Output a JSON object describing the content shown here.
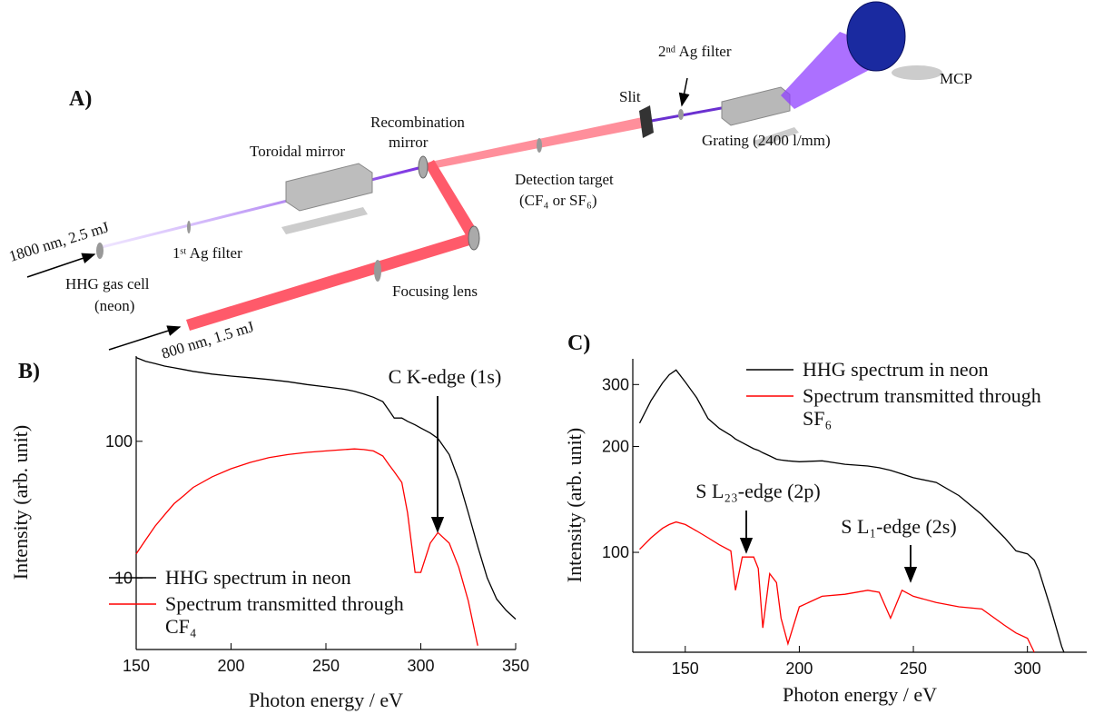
{
  "diagram": {
    "panel_label": "A)",
    "labels": {
      "toroidal_mirror": "Toroidal mirror",
      "recombination_mirror": [
        "Recombination",
        "mirror"
      ],
      "detection_target": [
        "Detection target",
        "(CF₄ or SF₆)"
      ],
      "slit": "Slit",
      "second_filter": "2ⁿᵈ Ag filter",
      "mcp": "MCP",
      "grating": "Grating (2400 l/mm)",
      "ir_beam": "1800 nm, 2.5 mJ",
      "first_filter": "1ˢᵗ Ag filter",
      "gas_cell": [
        "HHG gas cell",
        "(neon)"
      ],
      "focusing_lens": "Focusing lens",
      "nir_beam": "800 nm, 1.5 mJ"
    }
  },
  "chart_data": [
    {
      "type": "line",
      "panel_label": "B)",
      "xlabel": "Photon energy / eV",
      "ylabel": "Intensity (arb. unit)",
      "yscale": "log",
      "xlim": [
        150,
        350
      ],
      "ylim": [
        3,
        420
      ],
      "xticks": [
        150,
        200,
        250,
        300,
        350
      ],
      "yticks": [
        10,
        100
      ],
      "legend": "lower left",
      "annotations": [
        "C K-edge (1s)"
      ],
      "x": [
        150,
        155,
        160,
        165,
        170,
        175,
        180,
        190,
        200,
        210,
        220,
        230,
        240,
        250,
        260,
        265,
        270,
        275,
        280,
        283,
        286,
        290,
        293,
        297,
        300,
        305,
        309,
        315,
        320,
        325,
        330,
        335,
        340,
        345,
        350
      ],
      "series": [
        {
          "name": "HHG spectrum in neon",
          "color": "#000000",
          "values": [
            410,
            385,
            370,
            355,
            345,
            335,
            325,
            310,
            300,
            292,
            283,
            273,
            260,
            250,
            240,
            232,
            222,
            210,
            195,
            170,
            148,
            148,
            140,
            132,
            125,
            115,
            105,
            80,
            52,
            30,
            17,
            10,
            7,
            5.8,
            5
          ]
        },
        {
          "name": "Spectrum transmitted through CF₄",
          "color": "#ff0000",
          "values": [
            15,
            19,
            24,
            29,
            35,
            40,
            46,
            55,
            63,
            70,
            76,
            80,
            83,
            85,
            87,
            88,
            87,
            85,
            78,
            68,
            60,
            50,
            30,
            11,
            11,
            18,
            21.5,
            18,
            12,
            6.8,
            3.2,
            null,
            null,
            null,
            null
          ]
        }
      ]
    },
    {
      "type": "line",
      "panel_label": "C)",
      "xlabel": "Photon energy / eV",
      "ylabel": "Intensity (arb. unit)",
      "yscale": "log",
      "xlim": [
        127,
        326
      ],
      "ylim": [
        52,
        355
      ],
      "xticks": [
        150,
        200,
        250,
        300
      ],
      "yticks": [
        100,
        200,
        300
      ],
      "legend": "upper right",
      "annotations": [
        "S L₂₃-edge (2p)",
        "S L₁-edge (2s)"
      ],
      "x": [
        130,
        135,
        140,
        143,
        146,
        150,
        155,
        160,
        165,
        170,
        172,
        175,
        180,
        182,
        184,
        187,
        190,
        192,
        195,
        200,
        210,
        220,
        230,
        235,
        240,
        245,
        250,
        260,
        270,
        280,
        290,
        295,
        300,
        303,
        305,
        310,
        315,
        316
      ],
      "series": [
        {
          "name": "HHG spectrum in neon",
          "color": "#000000",
          "values": [
            233,
            270,
            303,
            320,
            330,
            305,
            275,
            240,
            225,
            215,
            210,
            205,
            197,
            195,
            192,
            188,
            184,
            183,
            182,
            181,
            182,
            178,
            176,
            174,
            171,
            167,
            163,
            158,
            145,
            128,
            110,
            101,
            99,
            95,
            89,
            70,
            54,
            52
          ]
        },
        {
          "name": "Spectrum transmitted through SF₆",
          "color": "#ff0000",
          "values": [
            102,
            110,
            117,
            120,
            122,
            120,
            115,
            110,
            105,
            101,
            78,
            97,
            97,
            90,
            61,
            87,
            82,
            65,
            55,
            70,
            75,
            76,
            78,
            77,
            65,
            78,
            75,
            72,
            70,
            69,
            62,
            59,
            57,
            52,
            null,
            null,
            null,
            null
          ]
        }
      ]
    }
  ]
}
